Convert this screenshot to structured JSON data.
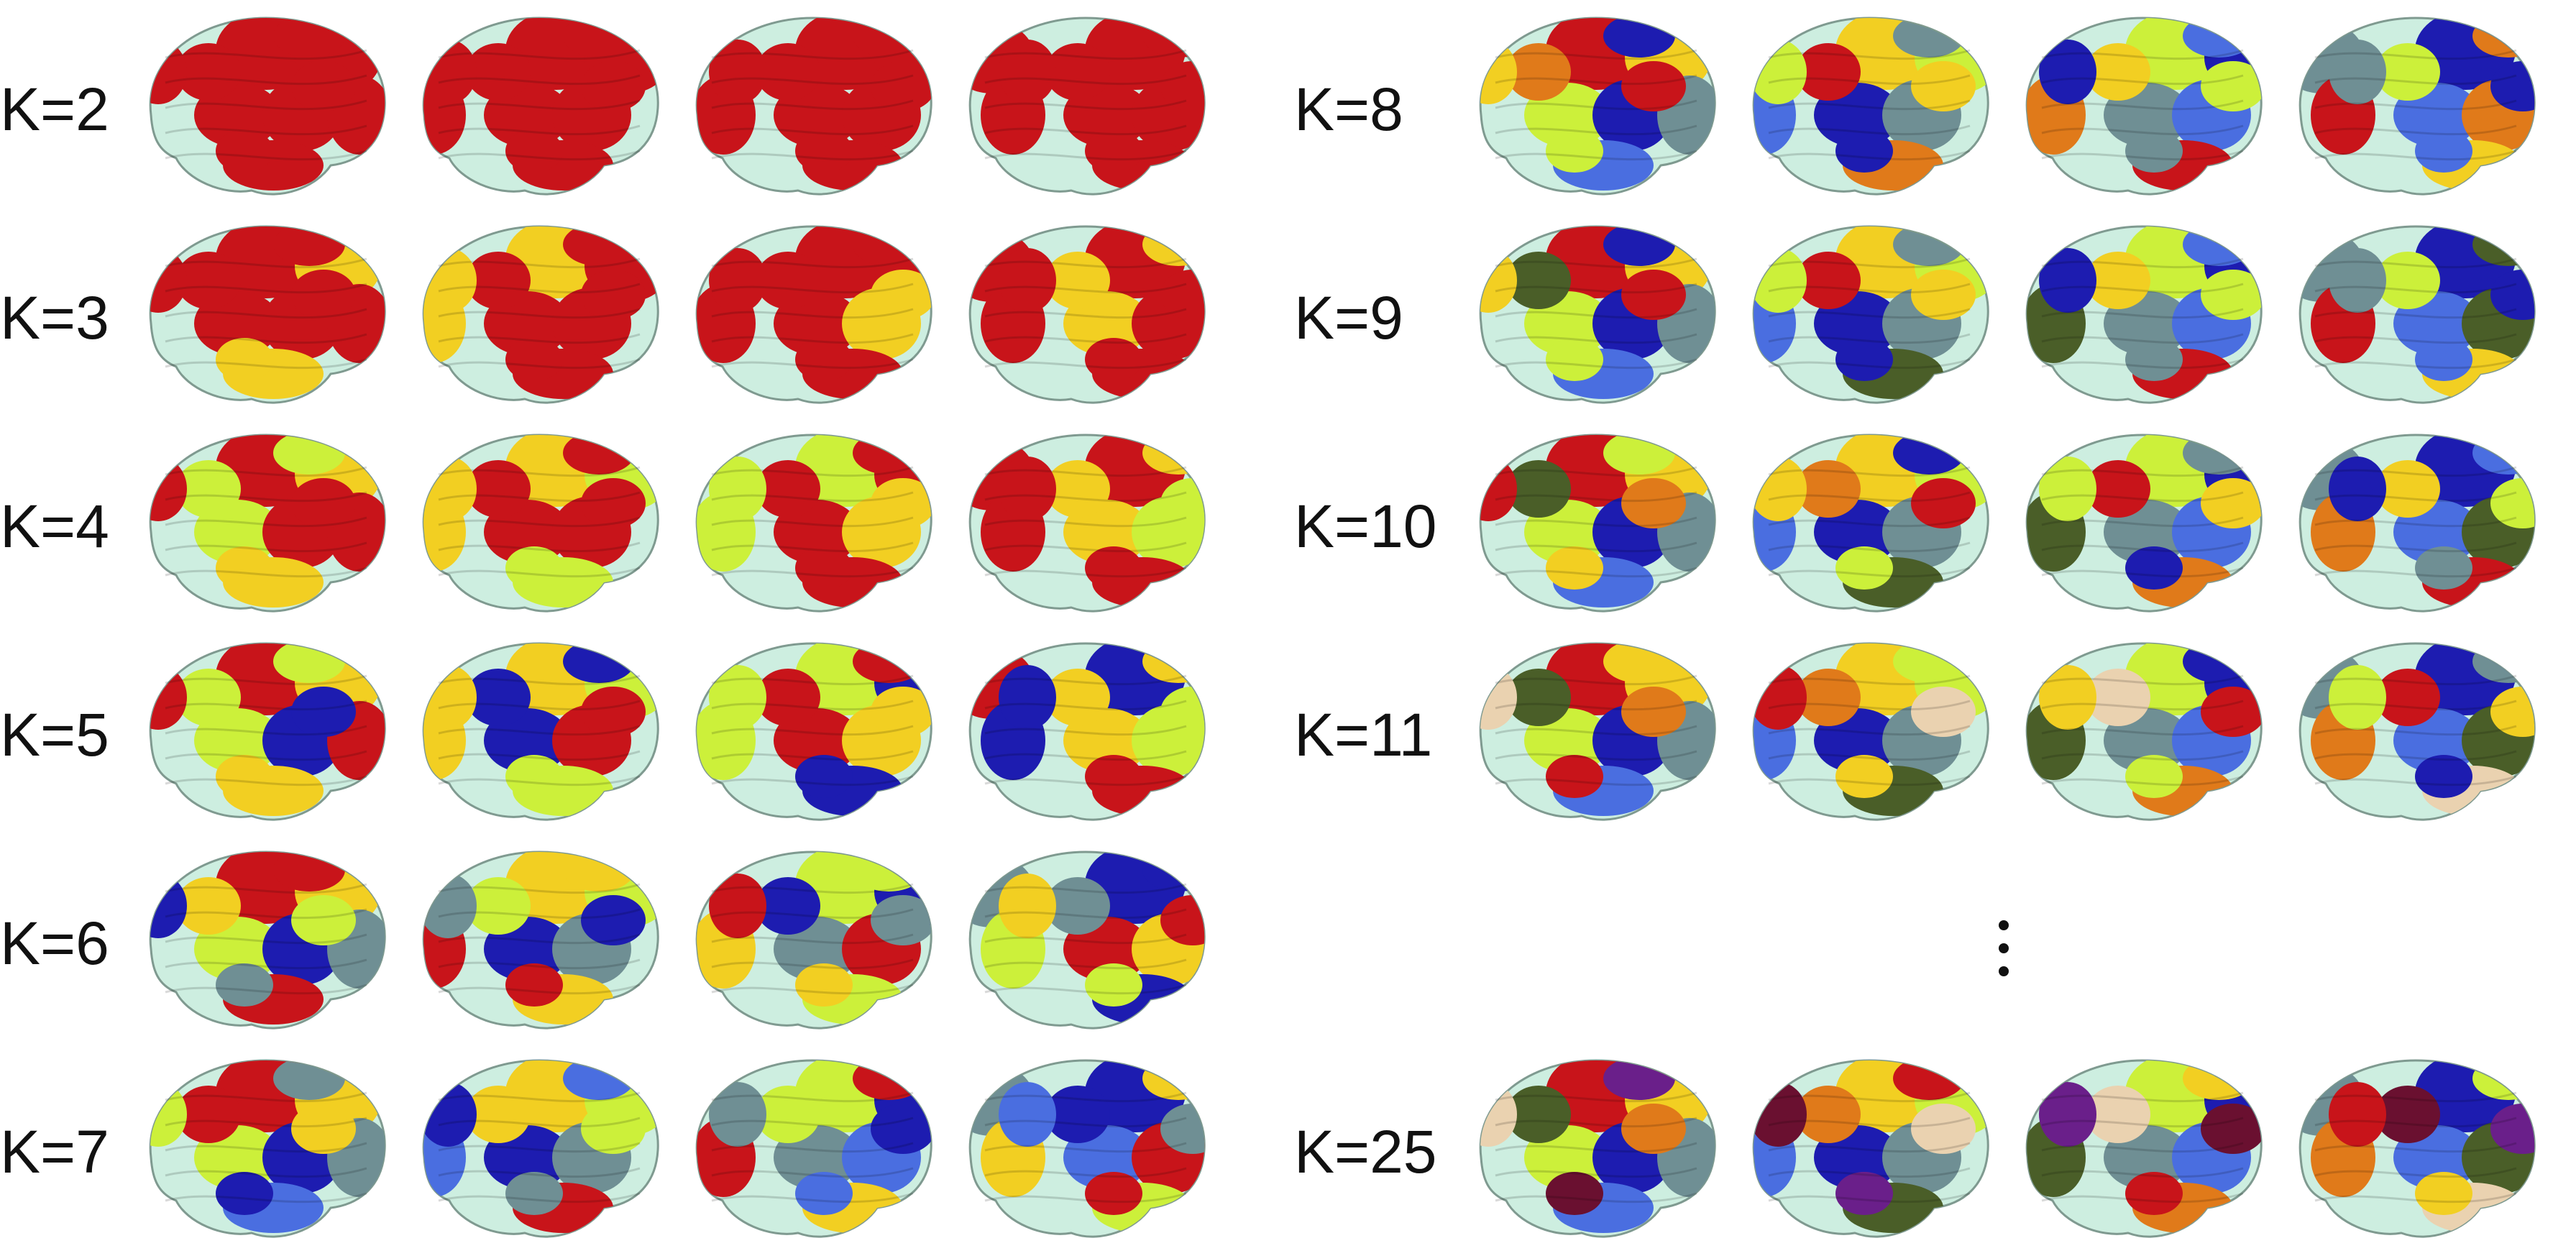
{
  "figure": {
    "rows_left": [
      {
        "label": "K=2",
        "scheme": 0
      },
      {
        "label": "K=3",
        "scheme": 1
      },
      {
        "label": "K=4",
        "scheme": 2
      },
      {
        "label": "K=5",
        "scheme": 3
      },
      {
        "label": "K=6",
        "scheme": 4
      },
      {
        "label": "K=7",
        "scheme": 5
      }
    ],
    "rows_right": [
      {
        "label": "K=8",
        "scheme": 6
      },
      {
        "label": "K=9",
        "scheme": 7
      },
      {
        "label": "K=10",
        "scheme": 8
      },
      {
        "label": "K=11",
        "scheme": 9
      },
      {
        "label": "K=25",
        "scheme": 10
      }
    ],
    "colors": {
      "base": "#cdeee0",
      "red": "#c8141a",
      "yellow": "#f2cf22",
      "lime": "#ccf03a",
      "blue": "#4a6ee0",
      "darkblue": "#1d1cb0",
      "slate": "#6f8f94",
      "olive": "#4a5e28",
      "orange": "#e07a1a",
      "maroon": "#6a1030",
      "purple": "#6a1f8a",
      "beige": "#ead2b0"
    }
  }
}
